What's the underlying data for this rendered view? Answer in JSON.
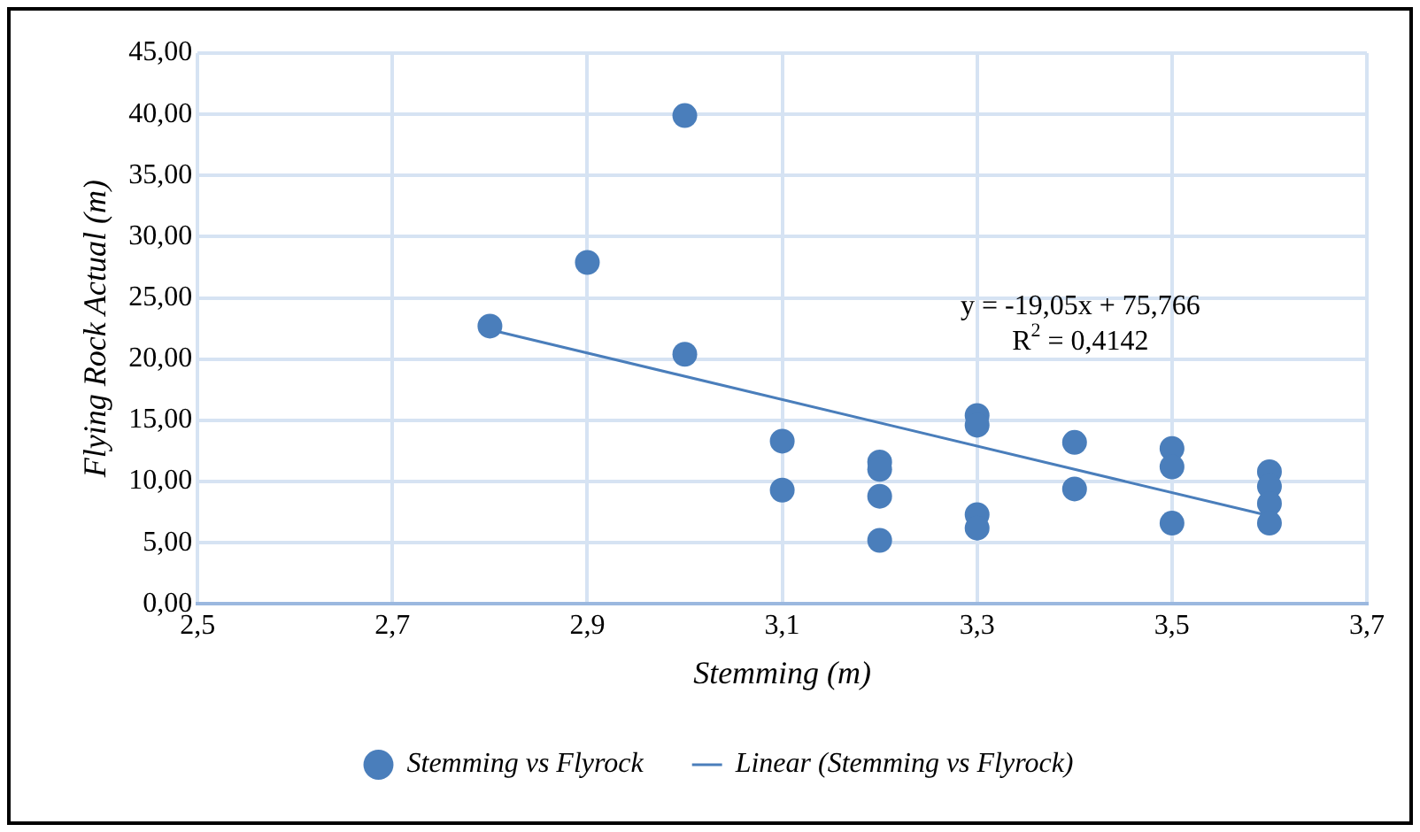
{
  "chart_data": {
    "type": "scatter",
    "xlabel": "Stemming (m)",
    "ylabel": "Flying Rock Actual (m)",
    "series": [
      {
        "name": "Stemming vs Flyrock",
        "color": "#4a7ebb",
        "marker": "circle",
        "x": [
          2.8,
          2.9,
          3.0,
          3.0,
          3.1,
          3.1,
          3.2,
          3.2,
          3.2,
          3.2,
          3.3,
          3.3,
          3.3,
          3.3,
          3.4,
          3.4,
          3.5,
          3.5,
          3.5,
          3.6,
          3.6,
          3.6,
          3.6
        ],
        "values": [
          22.7,
          27.9,
          39.9,
          20.4,
          13.3,
          9.3,
          11.6,
          11.0,
          8.8,
          5.2,
          15.4,
          14.6,
          7.3,
          6.2,
          13.2,
          9.4,
          12.7,
          11.2,
          6.6,
          10.8,
          9.6,
          8.2,
          6.6
        ]
      },
      {
        "name": "Linear (Stemming vs Flyrock)",
        "type": "line",
        "color": "#4a7ebb",
        "marker": "none",
        "line_style": "solid",
        "x": [
          2.8,
          3.6
        ],
        "values": [
          22.4,
          7.2
        ]
      }
    ],
    "xlim": [
      2.5,
      3.7
    ],
    "xticks": [
      {
        "value": 2.5,
        "label": "2,5"
      },
      {
        "value": 2.7,
        "label": "2,7"
      },
      {
        "value": 2.9,
        "label": "2,9"
      },
      {
        "value": 3.1,
        "label": "3,1"
      },
      {
        "value": 3.3,
        "label": "3,3"
      },
      {
        "value": 3.5,
        "label": "3,5"
      },
      {
        "value": 3.7,
        "label": "3,7"
      }
    ],
    "ylim": [
      0,
      45
    ],
    "yticks": [
      {
        "value": 0,
        "label": "0,00"
      },
      {
        "value": 5,
        "label": "5,00"
      },
      {
        "value": 10,
        "label": "10,00"
      },
      {
        "value": 15,
        "label": "15,00"
      },
      {
        "value": 20,
        "label": "20,00"
      },
      {
        "value": 25,
        "label": "25,00"
      },
      {
        "value": 30,
        "label": "30,00"
      },
      {
        "value": 35,
        "label": "35,00"
      },
      {
        "value": 40,
        "label": "40,00"
      },
      {
        "value": 45,
        "label": "45,00"
      }
    ],
    "annotations": [
      "y = -19,05x + 75,766",
      "R$^{2}$ = 0,4142"
    ],
    "grid": true,
    "legend": "bottom"
  }
}
